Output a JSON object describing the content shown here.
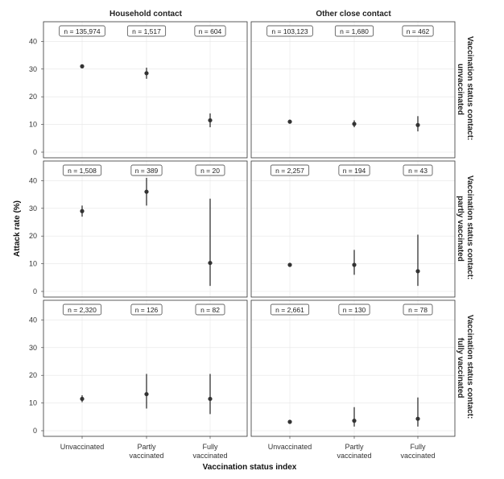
{
  "chart_data": {
    "type": "scatter",
    "ylabel": "Attack rate (%)",
    "xlabel": "Vaccination status index",
    "categories": [
      "Unvaccinated",
      "Partly vaccinated",
      "Fully vaccinated"
    ],
    "category_lines": [
      [
        "Unvaccinated"
      ],
      [
        "Partly",
        "vaccinated"
      ],
      [
        "Fully",
        "vaccinated"
      ]
    ],
    "column_facets": [
      "Household contact",
      "Other close contact"
    ],
    "row_facets": [
      [
        "Vaccination status contact:",
        "unvaccinated"
      ],
      [
        "Vaccination status contact:",
        "partly vaccinated"
      ],
      [
        "Vaccination status contact:",
        "fully vaccinated"
      ]
    ],
    "ylim": [
      0,
      45
    ],
    "yticks": [
      0,
      10,
      20,
      30,
      40
    ],
    "grid": true,
    "panels": [
      {
        "row": 0,
        "col": 0,
        "points": [
          {
            "x": "Unvaccinated",
            "y": 31,
            "lo": 30.5,
            "hi": 31.5,
            "n": "n = 135,974"
          },
          {
            "x": "Partly vaccinated",
            "y": 28.5,
            "lo": 26.5,
            "hi": 30.5,
            "n": "n = 1,517"
          },
          {
            "x": "Fully vaccinated",
            "y": 11.5,
            "lo": 9,
            "hi": 14,
            "n": "n = 604"
          }
        ]
      },
      {
        "row": 0,
        "col": 1,
        "points": [
          {
            "x": "Unvaccinated",
            "y": 11,
            "lo": 10.6,
            "hi": 11.4,
            "n": "n = 103,123"
          },
          {
            "x": "Partly vaccinated",
            "y": 10.2,
            "lo": 9,
            "hi": 11.5,
            "n": "n = 1,680"
          },
          {
            "x": "Fully vaccinated",
            "y": 9.8,
            "lo": 7.5,
            "hi": 13,
            "n": "n = 462"
          }
        ]
      },
      {
        "row": 1,
        "col": 0,
        "points": [
          {
            "x": "Unvaccinated",
            "y": 29,
            "lo": 27,
            "hi": 31,
            "n": "n = 1,508"
          },
          {
            "x": "Partly vaccinated",
            "y": 36,
            "lo": 31,
            "hi": 41,
            "n": "n = 389"
          },
          {
            "x": "Fully vaccinated",
            "y": 10.3,
            "lo": 2,
            "hi": 33.5,
            "n": "n = 20"
          }
        ]
      },
      {
        "row": 1,
        "col": 1,
        "points": [
          {
            "x": "Unvaccinated",
            "y": 9.6,
            "lo": 9.1,
            "hi": 10.1,
            "n": "n = 2,257"
          },
          {
            "x": "Partly vaccinated",
            "y": 9.6,
            "lo": 6,
            "hi": 15,
            "n": "n = 194"
          },
          {
            "x": "Fully vaccinated",
            "y": 7.3,
            "lo": 2,
            "hi": 20.5,
            "n": "n = 43"
          }
        ]
      },
      {
        "row": 2,
        "col": 0,
        "points": [
          {
            "x": "Unvaccinated",
            "y": 11.5,
            "lo": 10.3,
            "hi": 12.8,
            "n": "n = 2,320"
          },
          {
            "x": "Partly vaccinated",
            "y": 13.2,
            "lo": 8,
            "hi": 20.5,
            "n": "n = 126"
          },
          {
            "x": "Fully vaccinated",
            "y": 11.5,
            "lo": 6,
            "hi": 20.5,
            "n": "n = 82"
          }
        ]
      },
      {
        "row": 2,
        "col": 1,
        "points": [
          {
            "x": "Unvaccinated",
            "y": 3.2,
            "lo": 2.8,
            "hi": 3.6,
            "n": "n = 2,661"
          },
          {
            "x": "Partly vaccinated",
            "y": 3.6,
            "lo": 1.5,
            "hi": 8.5,
            "n": "n = 130"
          },
          {
            "x": "Fully vaccinated",
            "y": 4.3,
            "lo": 1.5,
            "hi": 12,
            "n": "n = 78"
          }
        ]
      }
    ],
    "colors": {
      "point": "#333333",
      "errorbar": "#222222",
      "grid": "#e6e6e6",
      "border": "#333333"
    }
  }
}
